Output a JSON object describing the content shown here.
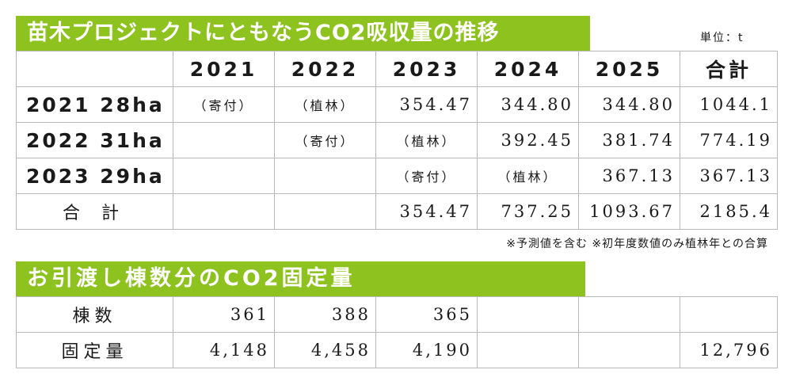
{
  "colors": {
    "banner_green": "#8dc21f",
    "border": "#b9b9b9"
  },
  "co2_table": {
    "title": "苗木プロジェクトにともなうCO2吸収量の推移",
    "unit": "単位：t",
    "year_headers": [
      "2021",
      "2022",
      "2023",
      "2024",
      "2025",
      "合計"
    ],
    "rows": [
      {
        "label": "2021 28ha",
        "cells": [
          "（寄付）",
          "（植林）",
          "354.47",
          "344.80",
          "344.80",
          "1044.1"
        ]
      },
      {
        "label": "2022 31ha",
        "cells": [
          "",
          "（寄付）",
          "（植林）",
          "392.45",
          "381.74",
          "774.19"
        ]
      },
      {
        "label": "2023 29ha",
        "cells": [
          "",
          "",
          "（寄付）",
          "（植林）",
          "367.13",
          "367.13"
        ]
      }
    ],
    "total_row": {
      "label": "合 計",
      "cells": [
        "",
        "",
        "354.47",
        "737.25",
        "1093.67",
        "2185.4"
      ]
    },
    "note": "※予測値を含む ※初年度数値のみ植林年との合算"
  },
  "fixed_table": {
    "title": "お引渡し棟数分のCO2固定量",
    "rows": [
      {
        "label": "棟数",
        "cells": [
          "361",
          "388",
          "365",
          "",
          "",
          ""
        ]
      },
      {
        "label": "固定量",
        "cells": [
          "4,148",
          "4,458",
          "4,190",
          "",
          "",
          "12,796"
        ]
      }
    ]
  }
}
